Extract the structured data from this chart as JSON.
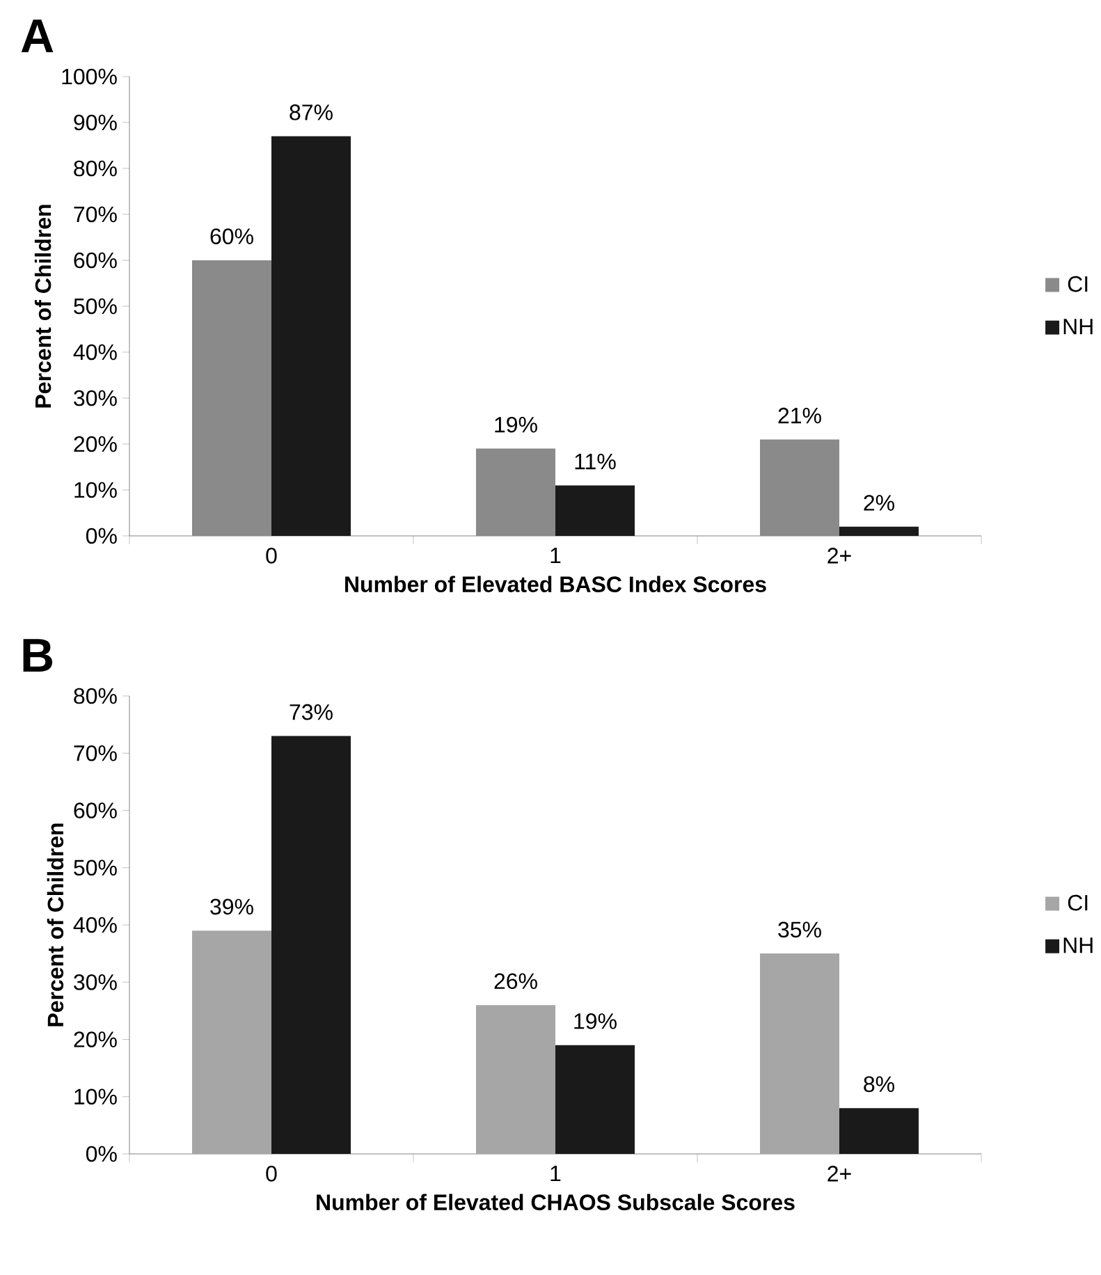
{
  "chart_data": [
    {
      "type": "bar",
      "title": "A",
      "xlabel": "Number of Elevated BASC Index Scores",
      "ylabel": "Percent of Children",
      "categories": [
        "0",
        "1",
        "2+"
      ],
      "series": [
        {
          "name": "CI",
          "color": "#8a8a8a",
          "values": [
            60,
            19,
            21
          ],
          "value_labels": [
            "60%",
            "19%",
            "21%"
          ]
        },
        {
          "name": "NH",
          "color": "#1a1a1a",
          "values": [
            87,
            11,
            2
          ],
          "value_labels": [
            "87%",
            "11%",
            "2%"
          ]
        }
      ],
      "ylim": [
        0,
        100
      ],
      "yticks": [
        {
          "value": 0,
          "label": "0%"
        },
        {
          "value": 10,
          "label": "10%"
        },
        {
          "value": 20,
          "label": "20%"
        },
        {
          "value": 30,
          "label": "30%"
        },
        {
          "value": 40,
          "label": "40%"
        },
        {
          "value": 50,
          "label": "50%"
        },
        {
          "value": 60,
          "label": "60%"
        },
        {
          "value": 70,
          "label": "70%"
        },
        {
          "value": 80,
          "label": "80%"
        },
        {
          "value": 90,
          "label": "90%"
        },
        {
          "value": 100,
          "label": "100%"
        }
      ],
      "legend": "right"
    },
    {
      "type": "bar",
      "title": "B",
      "xlabel": "Number of Elevated CHAOS Subscale Scores",
      "ylabel": "Percent of Children",
      "categories": [
        "0",
        "1",
        "2+"
      ],
      "series": [
        {
          "name": "CI",
          "color": "#a6a6a6",
          "values": [
            39,
            26,
            35
          ],
          "value_labels": [
            "39%",
            "26%",
            "35%"
          ]
        },
        {
          "name": "NH",
          "color": "#1a1a1a",
          "values": [
            73,
            19,
            8
          ],
          "value_labels": [
            "73%",
            "19%",
            "8%"
          ]
        }
      ],
      "ylim": [
        0,
        80
      ],
      "yticks": [
        {
          "value": 0,
          "label": "0%"
        },
        {
          "value": 10,
          "label": "10%"
        },
        {
          "value": 20,
          "label": "20%"
        },
        {
          "value": 30,
          "label": "30%"
        },
        {
          "value": 40,
          "label": "40%"
        },
        {
          "value": 50,
          "label": "50%"
        },
        {
          "value": 60,
          "label": "60%"
        },
        {
          "value": 70,
          "label": "70%"
        },
        {
          "value": 80,
          "label": "80%"
        }
      ],
      "legend": "right"
    }
  ]
}
